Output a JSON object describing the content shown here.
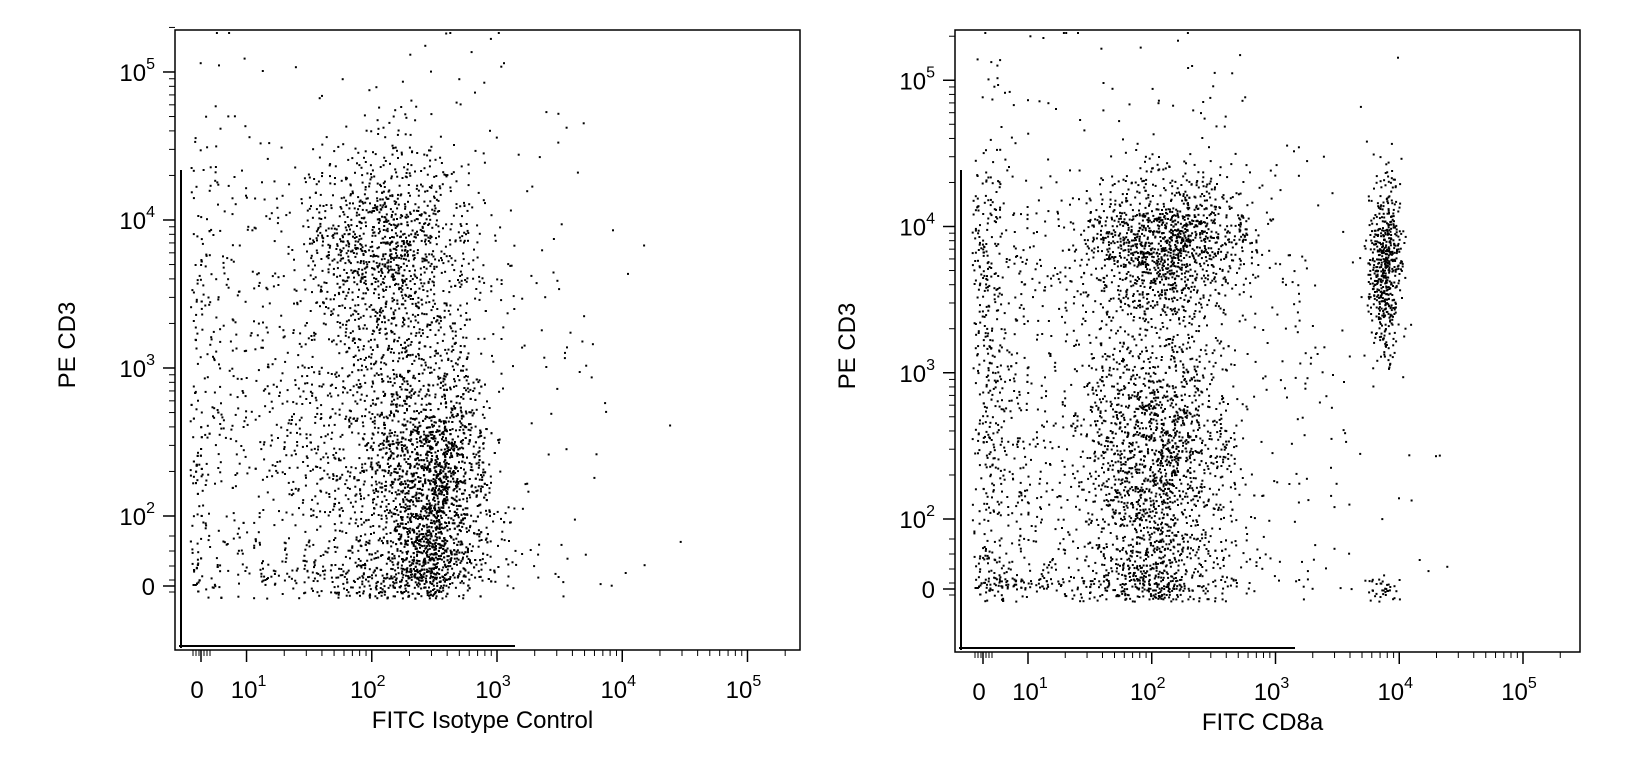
{
  "chart_data": [
    {
      "type": "scatter",
      "title": "",
      "xlabel": "FITC Isotype Control",
      "ylabel": "PE CD3",
      "x_scale": "biexponential",
      "y_scale": "biexponential",
      "xlim": [
        -30,
        250000
      ],
      "ylim": [
        -30,
        250000
      ],
      "x_ticks": [
        {
          "base": "0",
          "exp": ""
        },
        {
          "base": "10",
          "exp": "1"
        },
        {
          "base": "10",
          "exp": "2"
        },
        {
          "base": "10",
          "exp": "3"
        },
        {
          "base": "10",
          "exp": "4"
        },
        {
          "base": "10",
          "exp": "5"
        }
      ],
      "y_ticks": [
        {
          "base": "0",
          "exp": ""
        },
        {
          "base": "10",
          "exp": "2"
        },
        {
          "base": "10",
          "exp": "3"
        },
        {
          "base": "10",
          "exp": "4"
        },
        {
          "base": "10",
          "exp": "5"
        }
      ],
      "point_color": "#000000",
      "populations": [
        {
          "x_center": 130,
          "y_center": 7000,
          "x_spread_decades": 0.35,
          "y_spread_decades": 0.35,
          "share": 0.22
        },
        {
          "x_center": 300,
          "y_center": 150,
          "x_spread_decades": 0.22,
          "y_spread_decades": 0.5,
          "share": 0.45
        },
        {
          "x_center": 90,
          "y_center": 300,
          "x_spread_decades": 0.45,
          "y_spread_decades": 0.6,
          "share": 0.18
        },
        {
          "x_center": 60,
          "y_center": 1200,
          "x_spread_decades": 1.0,
          "y_spread_decades": 1.1,
          "share": 0.15
        }
      ]
    },
    {
      "type": "scatter",
      "title": "",
      "xlabel": "FITC CD8a",
      "ylabel": "PE CD3",
      "x_scale": "biexponential",
      "y_scale": "biexponential",
      "xlim": [
        -30,
        250000
      ],
      "ylim": [
        -30,
        250000
      ],
      "x_ticks": [
        {
          "base": "0",
          "exp": ""
        },
        {
          "base": "10",
          "exp": "1"
        },
        {
          "base": "10",
          "exp": "2"
        },
        {
          "base": "10",
          "exp": "3"
        },
        {
          "base": "10",
          "exp": "4"
        },
        {
          "base": "10",
          "exp": "5"
        }
      ],
      "y_ticks": [
        {
          "base": "0",
          "exp": ""
        },
        {
          "base": "10",
          "exp": "2"
        },
        {
          "base": "10",
          "exp": "3"
        },
        {
          "base": "10",
          "exp": "4"
        },
        {
          "base": "10",
          "exp": "5"
        }
      ],
      "point_color": "#000000",
      "populations": [
        {
          "x_center": 130,
          "y_center": 8000,
          "x_spread_decades": 0.35,
          "y_spread_decades": 0.22,
          "share": 0.25
        },
        {
          "x_center": 110,
          "y_center": 250,
          "x_spread_decades": 0.3,
          "y_spread_decades": 0.55,
          "share": 0.35
        },
        {
          "x_center": 7500,
          "y_center": 5500,
          "x_spread_decades": 0.07,
          "y_spread_decades": 0.3,
          "share": 0.12
        },
        {
          "x_center": 30,
          "y_center": 800,
          "x_spread_decades": 1.0,
          "y_spread_decades": 1.1,
          "share": 0.28
        }
      ]
    }
  ]
}
